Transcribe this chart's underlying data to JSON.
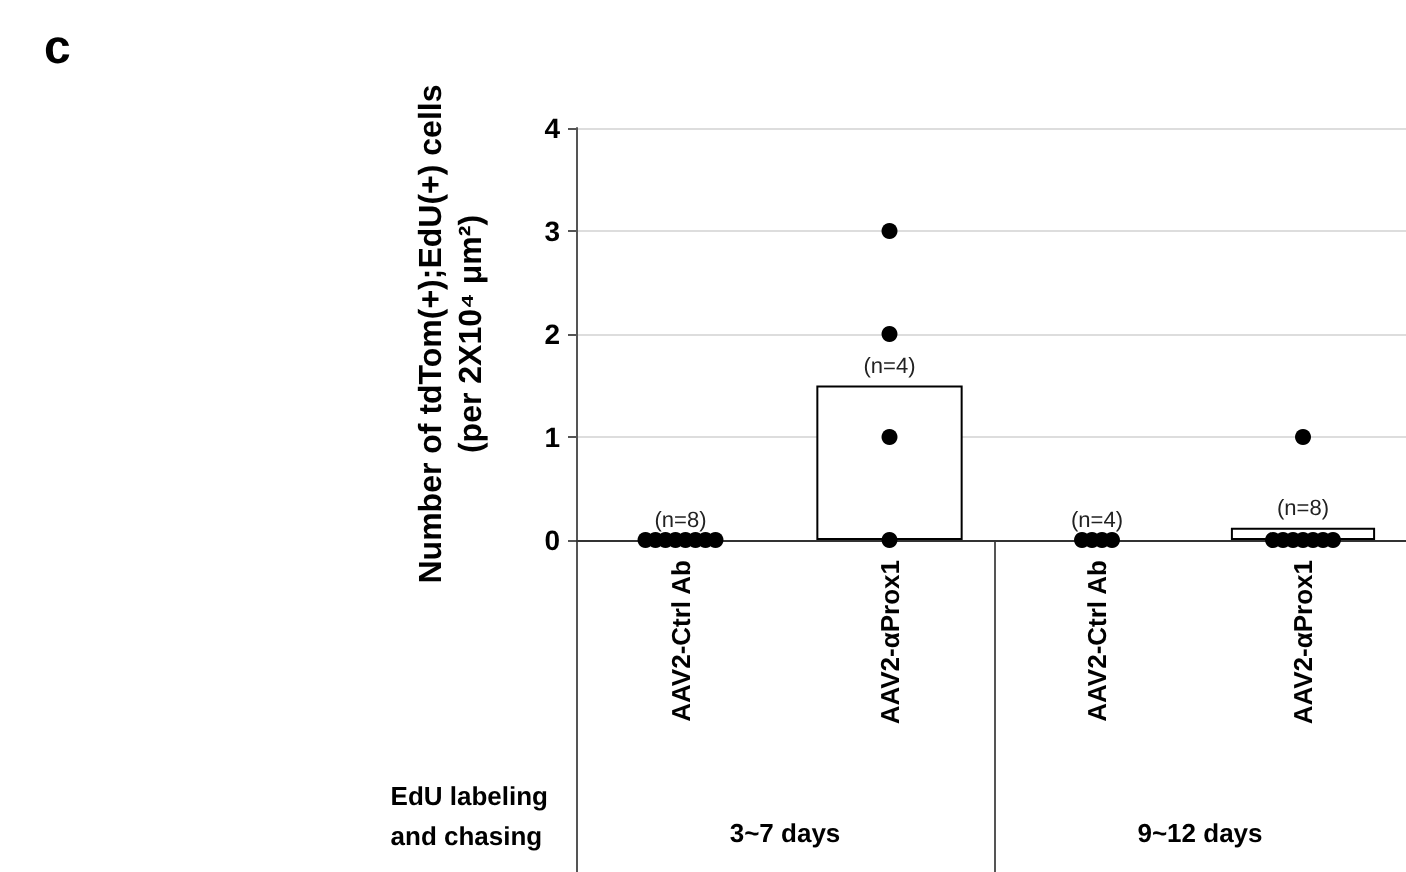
{
  "chart_data": [
    {
      "type": "bar",
      "ylabel": "Number of tdTom(+);EdU(+) cells\n(per 2X10⁴ μm²)",
      "xlabel": "3~7 days",
      "categories": [
        "AAV2-Ctrl Ab",
        "AAV2-αProx1"
      ],
      "series": [
        {
          "color": "#ffffff",
          "values": [
            0,
            1.5
          ]
        },
        {
          "type": "scatter",
          "color": "#000000",
          "x": [
            "AAV2-Ctrl Ab",
            "AAV2-Ctrl Ab",
            "AAV2-Ctrl Ab",
            "AAV2-Ctrl Ab",
            "AAV2-Ctrl Ab",
            "AAV2-Ctrl Ab",
            "AAV2-Ctrl Ab",
            "AAV2-Ctrl Ab",
            "AAV2-αProx1",
            "AAV2-αProx1",
            "AAV2-αProx1",
            "AAV2-αProx1"
          ],
          "values": [
            0,
            0,
            0,
            0,
            0,
            0,
            0,
            0,
            0,
            1,
            2,
            3
          ]
        }
      ],
      "ylim": [
        0,
        4
      ],
      "yticks": [
        0,
        1,
        2,
        3,
        4
      ],
      "grid": "y",
      "marker": "circle",
      "annotations": [
        "c",
        "EdU labeling\nand chasing",
        {
          "text": "(n=8)",
          "x": "AAV2-Ctrl Ab",
          "y": 0
        },
        {
          "text": "(n=4)",
          "x": "AAV2-αProx1",
          "y": 1.5
        }
      ]
    },
    {
      "type": "bar",
      "xlabel": "9~12 days",
      "categories": [
        "AAV2-Ctrl Ab",
        "AAV2-αProx1"
      ],
      "series": [
        {
          "color": "#ffffff",
          "values": [
            0,
            0.12
          ]
        },
        {
          "type": "scatter",
          "color": "#000000",
          "x": [
            "AAV2-Ctrl Ab",
            "AAV2-Ctrl Ab",
            "AAV2-Ctrl Ab",
            "AAV2-Ctrl Ab",
            "AAV2-αProx1",
            "AAV2-αProx1",
            "AAV2-αProx1",
            "AAV2-αProx1",
            "AAV2-αProx1",
            "AAV2-αProx1",
            "AAV2-αProx1",
            "AAV2-αProx1"
          ],
          "values": [
            0,
            0,
            0,
            0,
            1,
            0,
            0,
            0,
            0,
            0,
            0,
            0
          ]
        }
      ],
      "ylim": [
        0,
        4
      ],
      "yticks": [
        0,
        1,
        2,
        3,
        4
      ],
      "grid": "y",
      "marker": "circle",
      "tick_labels": "x",
      "annotations": [
        {
          "text": "(n=4)",
          "x": "AAV2-Ctrl Ab",
          "y": 0
        },
        {
          "text": "(n=8)",
          "x": "AAV2-αProx1",
          "y": 0.12
        }
      ]
    }
  ]
}
